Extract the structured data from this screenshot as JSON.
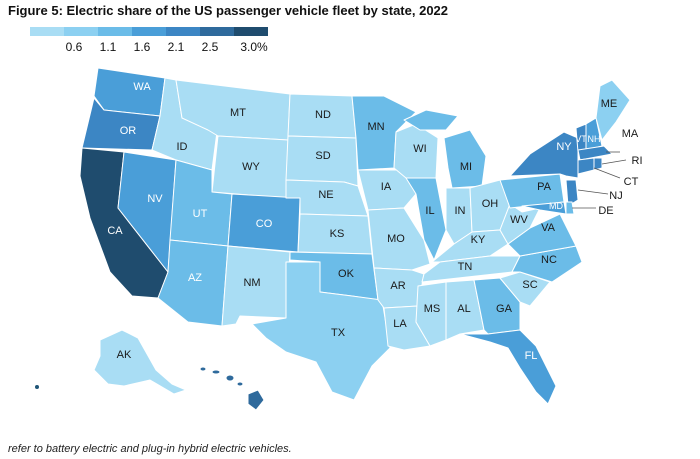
{
  "title": "Figure 5: Electric share of the US passenger vehicle fleet by state, 2022",
  "legend": {
    "colors": [
      "#a9ddf4",
      "#8cd0f1",
      "#6bbce8",
      "#4a9ed8",
      "#3c86c4",
      "#2f6a9c",
      "#1f4c6e"
    ],
    "ticks": [
      "0.6",
      "1.1",
      "1.6",
      "2.1",
      "2.5",
      "3.0%"
    ]
  },
  "states": {
    "WA": "WA",
    "OR": "OR",
    "CA": "CA",
    "NV": "NV",
    "ID": "ID",
    "MT": "MT",
    "WY": "WY",
    "UT": "UT",
    "AZ": "AZ",
    "CO": "CO",
    "NM": "NM",
    "ND": "ND",
    "SD": "SD",
    "NE": "NE",
    "KS": "KS",
    "OK": "OK",
    "TX": "TX",
    "MN": "MN",
    "IA": "IA",
    "MO": "MO",
    "AR": "AR",
    "LA": "LA",
    "WI": "WI",
    "IL": "IL",
    "MS": "MS",
    "MI": "MI",
    "IN": "IN",
    "KY": "KY",
    "TN": "TN",
    "AL": "AL",
    "OH": "OH",
    "GA": "GA",
    "FL": "FL",
    "SC": "SC",
    "NC": "NC",
    "VA": "VA",
    "WV": "WV",
    "PA": "PA",
    "NY": "NY",
    "VT": "VT",
    "NH": "NH",
    "ME": "ME",
    "MA": "MA",
    "RI": "RI",
    "CT": "CT",
    "NJ": "NJ",
    "DE": "DE",
    "MD": "MD",
    "AK": "AK"
  },
  "footnote": "refer to battery electric and plug-in hybrid electric vehicles."
}
